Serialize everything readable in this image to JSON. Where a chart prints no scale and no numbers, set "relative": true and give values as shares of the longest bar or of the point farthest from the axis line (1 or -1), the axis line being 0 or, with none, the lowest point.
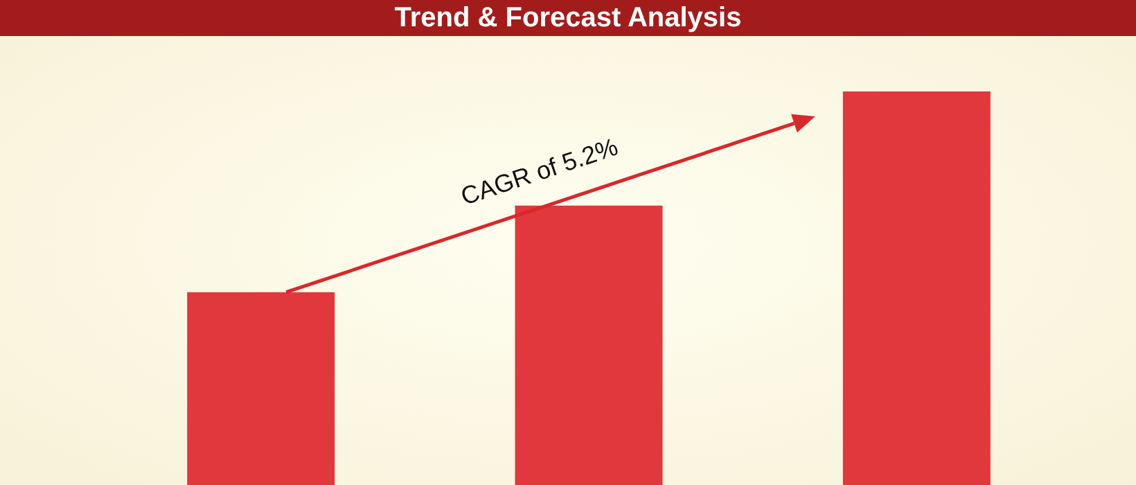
{
  "chart_data": {
    "type": "bar",
    "title": "Trend & Forecast Analysis",
    "relative": true,
    "categories": [
      null,
      null,
      null
    ],
    "values": [
      0.49,
      0.71,
      1
    ],
    "color": "#e0383c",
    "annotations": [
      "CAGR of 5.2%"
    ],
    "grid": false,
    "legend": false
  }
}
